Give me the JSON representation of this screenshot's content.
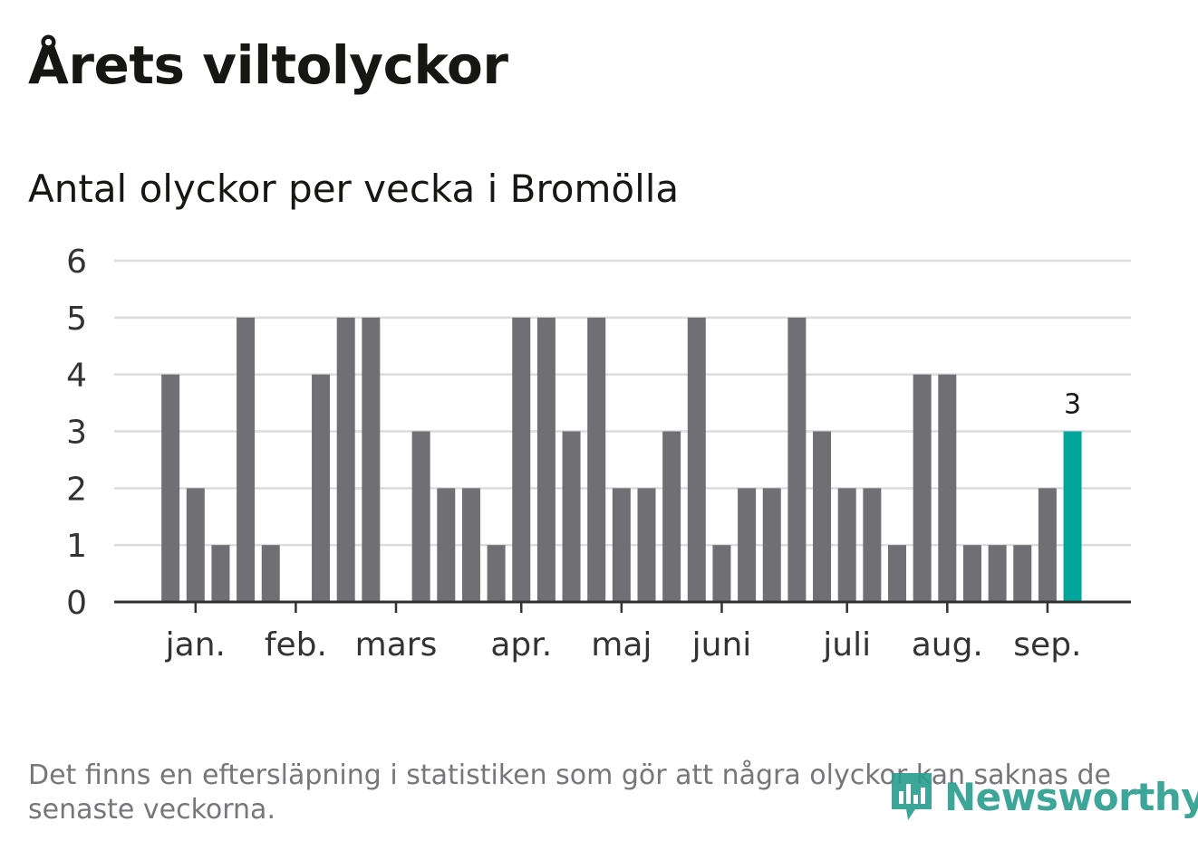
{
  "header": {
    "title": "Årets viltolyckor",
    "subtitle": "Antal olyckor per vecka i Bromölla"
  },
  "footer": {
    "note": "Det finns en eftersläpning i statistiken som gör att några olyckor kan saknas de senaste veckorna.",
    "brand": "Newsworthy"
  },
  "colors": {
    "bar": "#707074",
    "highlight": "#00a59b",
    "grid": "#dcdcdc",
    "axis": "#333333",
    "text": "#161612",
    "brand": "#2a9d8f"
  },
  "chart_data": {
    "type": "bar",
    "y_ticks": [
      "0",
      "1",
      "2",
      "3",
      "4",
      "5",
      "6"
    ],
    "ylim": [
      0,
      6
    ],
    "grid": true,
    "month_labels": [
      "jan.",
      "feb.",
      "mars",
      "apr.",
      "maj",
      "juni",
      "juli",
      "aug.",
      "sep."
    ],
    "month_label_week": [
      3,
      7,
      11,
      16,
      20,
      24,
      29,
      33,
      37
    ],
    "weeks": [
      1,
      2,
      3,
      4,
      5,
      6,
      7,
      8,
      9,
      10,
      11,
      12,
      13,
      14,
      15,
      16,
      17,
      18,
      19,
      20,
      21,
      22,
      23,
      24,
      25,
      26,
      27,
      28,
      29,
      30,
      31,
      32,
      33,
      34,
      35,
      36,
      37,
      38,
      39,
      40
    ],
    "values": [
      0,
      4,
      2,
      1,
      5,
      1,
      0,
      4,
      5,
      5,
      0,
      3,
      2,
      2,
      1,
      5,
      5,
      3,
      5,
      2,
      2,
      3,
      5,
      1,
      2,
      2,
      5,
      3,
      2,
      2,
      1,
      4,
      4,
      1,
      1,
      1,
      2,
      3,
      null,
      null
    ],
    "highlight_index": 37,
    "highlight_label": "3"
  }
}
